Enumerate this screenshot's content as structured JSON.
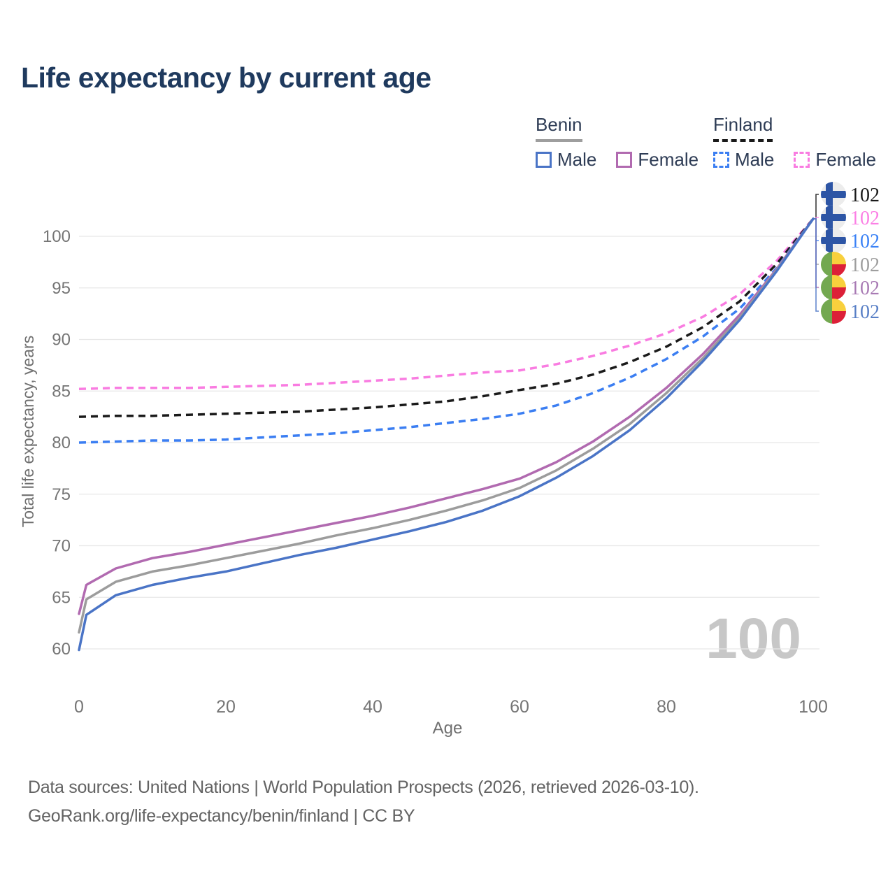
{
  "title": "Life expectancy by current age",
  "watermark": "100",
  "legend": {
    "groups": [
      {
        "name": "Benin",
        "line_style": "solid",
        "underline_color": "#9e9e9e",
        "items": [
          {
            "label": "Male",
            "color": "#4a74c6"
          },
          {
            "label": "Female",
            "color": "#b16ab0"
          }
        ]
      },
      {
        "name": "Finland",
        "line_style": "dashed",
        "underline_color": "#1a1a1a",
        "items": [
          {
            "label": "Male",
            "color": "#3b7ef2"
          },
          {
            "label": "Female",
            "color": "#f97ce1"
          }
        ]
      }
    ]
  },
  "footer": {
    "line1": "Data sources: United Nations | World Population Prospects (2026, retrieved 2026-03-10).",
    "line2": "GeoRank.org/life-expectancy/benin/finland | CC BY"
  },
  "chart_data": {
    "type": "line",
    "title": "Life expectancy by current age",
    "xlabel": "Age",
    "ylabel": "Total life expectancy, years",
    "xlim": [
      0,
      100
    ],
    "ylim": [
      58,
      103.5
    ],
    "x_ticks": [
      0,
      20,
      40,
      60,
      80,
      100
    ],
    "y_ticks": [
      60,
      65,
      70,
      75,
      80,
      85,
      90,
      95,
      100
    ],
    "grid": "horizontal",
    "legend_position": "top-right",
    "tick_color": "#757575",
    "grid_color": "#e7e7e7",
    "series": [
      {
        "id": "finland_female",
        "name": "Finland Female",
        "country": "Finland",
        "sex": "Female",
        "color": "#f97ce1",
        "dashed": true,
        "points": [
          [
            0,
            85.2
          ],
          [
            5,
            85.3
          ],
          [
            10,
            85.3
          ],
          [
            15,
            85.3
          ],
          [
            20,
            85.4
          ],
          [
            25,
            85.5
          ],
          [
            30,
            85.6
          ],
          [
            35,
            85.8
          ],
          [
            40,
            86.0
          ],
          [
            45,
            86.2
          ],
          [
            50,
            86.5
          ],
          [
            55,
            86.8
          ],
          [
            60,
            87.0
          ],
          [
            65,
            87.6
          ],
          [
            70,
            88.4
          ],
          [
            75,
            89.4
          ],
          [
            80,
            90.6
          ],
          [
            85,
            92.2
          ],
          [
            90,
            94.4
          ],
          [
            95,
            97.6
          ],
          [
            100,
            101.7
          ]
        ]
      },
      {
        "id": "finland_total",
        "name": "Finland",
        "country": "Finland",
        "sex": "Both",
        "color": "#1a1a1a",
        "dashed": true,
        "points": [
          [
            0,
            82.5
          ],
          [
            5,
            82.6
          ],
          [
            10,
            82.6
          ],
          [
            15,
            82.7
          ],
          [
            20,
            82.8
          ],
          [
            25,
            82.9
          ],
          [
            30,
            83.0
          ],
          [
            35,
            83.2
          ],
          [
            40,
            83.4
          ],
          [
            45,
            83.7
          ],
          [
            50,
            84.0
          ],
          [
            55,
            84.5
          ],
          [
            60,
            85.1
          ],
          [
            65,
            85.7
          ],
          [
            70,
            86.6
          ],
          [
            75,
            87.8
          ],
          [
            80,
            89.3
          ],
          [
            85,
            91.2
          ],
          [
            90,
            93.7
          ],
          [
            95,
            97.3
          ],
          [
            100,
            101.7
          ]
        ]
      },
      {
        "id": "finland_male",
        "name": "Finland Male",
        "country": "Finland",
        "sex": "Male",
        "color": "#3b7ef2",
        "dashed": true,
        "points": [
          [
            0,
            80.0
          ],
          [
            5,
            80.1
          ],
          [
            10,
            80.2
          ],
          [
            15,
            80.2
          ],
          [
            20,
            80.3
          ],
          [
            25,
            80.5
          ],
          [
            30,
            80.7
          ],
          [
            35,
            80.9
          ],
          [
            40,
            81.2
          ],
          [
            45,
            81.5
          ],
          [
            50,
            81.9
          ],
          [
            55,
            82.3
          ],
          [
            60,
            82.8
          ],
          [
            65,
            83.6
          ],
          [
            70,
            84.8
          ],
          [
            75,
            86.3
          ],
          [
            80,
            88.1
          ],
          [
            85,
            90.3
          ],
          [
            90,
            93.0
          ],
          [
            95,
            96.9
          ],
          [
            100,
            101.7
          ]
        ]
      },
      {
        "id": "benin_female",
        "name": "Benin Female",
        "country": "Benin",
        "sex": "Female",
        "color": "#b16ab0",
        "dashed": false,
        "points": [
          [
            0,
            63.4
          ],
          [
            1,
            66.2
          ],
          [
            5,
            67.8
          ],
          [
            10,
            68.8
          ],
          [
            15,
            69.4
          ],
          [
            20,
            70.1
          ],
          [
            25,
            70.8
          ],
          [
            30,
            71.5
          ],
          [
            35,
            72.2
          ],
          [
            40,
            72.9
          ],
          [
            45,
            73.7
          ],
          [
            50,
            74.6
          ],
          [
            55,
            75.5
          ],
          [
            60,
            76.5
          ],
          [
            65,
            78.1
          ],
          [
            70,
            80.1
          ],
          [
            75,
            82.5
          ],
          [
            80,
            85.3
          ],
          [
            85,
            88.6
          ],
          [
            90,
            92.4
          ],
          [
            95,
            96.8
          ],
          [
            100,
            101.7
          ]
        ]
      },
      {
        "id": "benin_total",
        "name": "Benin",
        "country": "Benin",
        "sex": "Both",
        "color": "#9c9c9c",
        "dashed": false,
        "points": [
          [
            0,
            61.6
          ],
          [
            1,
            64.8
          ],
          [
            5,
            66.5
          ],
          [
            10,
            67.5
          ],
          [
            15,
            68.1
          ],
          [
            20,
            68.8
          ],
          [
            25,
            69.5
          ],
          [
            30,
            70.2
          ],
          [
            35,
            71.0
          ],
          [
            40,
            71.7
          ],
          [
            45,
            72.5
          ],
          [
            50,
            73.4
          ],
          [
            55,
            74.4
          ],
          [
            60,
            75.6
          ],
          [
            65,
            77.3
          ],
          [
            70,
            79.4
          ],
          [
            75,
            81.8
          ],
          [
            80,
            84.8
          ],
          [
            85,
            88.2
          ],
          [
            90,
            92.1
          ],
          [
            95,
            96.7
          ],
          [
            100,
            101.7
          ]
        ]
      },
      {
        "id": "benin_male",
        "name": "Benin Male",
        "country": "Benin",
        "sex": "Male",
        "color": "#4a74c6",
        "dashed": false,
        "points": [
          [
            0,
            59.9
          ],
          [
            1,
            63.3
          ],
          [
            5,
            65.2
          ],
          [
            10,
            66.2
          ],
          [
            15,
            66.9
          ],
          [
            20,
            67.5
          ],
          [
            25,
            68.3
          ],
          [
            30,
            69.1
          ],
          [
            35,
            69.8
          ],
          [
            40,
            70.6
          ],
          [
            45,
            71.4
          ],
          [
            50,
            72.3
          ],
          [
            55,
            73.4
          ],
          [
            60,
            74.8
          ],
          [
            65,
            76.6
          ],
          [
            70,
            78.7
          ],
          [
            75,
            81.2
          ],
          [
            80,
            84.3
          ],
          [
            85,
            87.9
          ],
          [
            90,
            91.9
          ],
          [
            95,
            96.6
          ],
          [
            100,
            101.7
          ]
        ]
      }
    ],
    "end_labels": [
      {
        "series": "finland_total",
        "value": "102",
        "color": "#1a1a1a",
        "flag": "finland"
      },
      {
        "series": "finland_female",
        "value": "102",
        "color": "#fb80e5",
        "flag": "finland"
      },
      {
        "series": "finland_male",
        "value": "102",
        "color": "#3b82f6",
        "flag": "finland"
      },
      {
        "series": "benin_total",
        "value": "102",
        "color": "#9e9e9e",
        "flag": "benin"
      },
      {
        "series": "benin_female",
        "value": "102",
        "color": "#a87ab4",
        "flag": "benin"
      },
      {
        "series": "benin_male",
        "value": "102",
        "color": "#587fc6",
        "flag": "benin"
      }
    ]
  }
}
